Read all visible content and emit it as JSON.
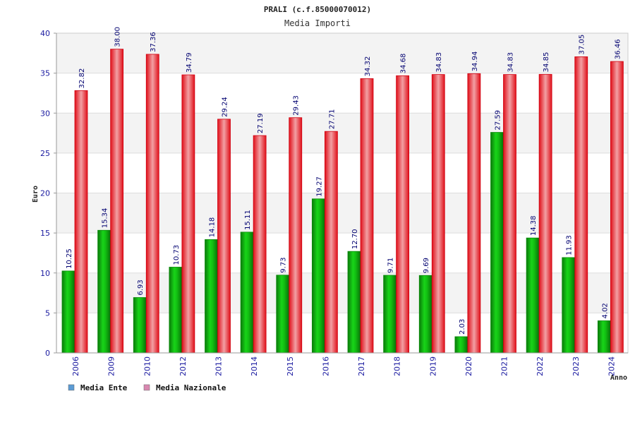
{
  "chart_data": {
    "type": "bar",
    "title": "PRALI (c.f.85000070012)",
    "subtitle": "Media Importi",
    "xlabel": "Anno",
    "ylabel": "Euro",
    "ylim": [
      0,
      40
    ],
    "yticks": [
      0,
      5,
      10,
      15,
      20,
      25,
      30,
      35,
      40
    ],
    "grid": "horizontal bands",
    "legend_position": "bottom-left",
    "categories": [
      "2006",
      "2009",
      "2010",
      "2012",
      "2013",
      "2014",
      "2015",
      "2016",
      "2017",
      "2018",
      "2019",
      "2020",
      "2021",
      "2022",
      "2023",
      "2024"
    ],
    "series": [
      {
        "name": "Media Ente",
        "color": "#12b312",
        "legend_color": "#5b9bd5",
        "values": [
          10.25,
          15.34,
          6.93,
          10.73,
          14.18,
          15.11,
          9.73,
          19.27,
          12.7,
          9.71,
          9.69,
          2.03,
          27.59,
          14.38,
          11.93,
          4.02
        ],
        "labels": [
          "10.25",
          "15.34",
          "6.93",
          "10.73",
          "14.18",
          "15.11",
          "9.73",
          "19.27",
          "12.70",
          "9.71",
          "9.69",
          "2.03",
          "27.59",
          "14.38",
          "11.93",
          "4.02"
        ]
      },
      {
        "name": "Media Nazionale",
        "color": "#e8131b",
        "legend_color": "#d988b0",
        "values": [
          32.82,
          38.0,
          37.36,
          34.79,
          29.24,
          27.19,
          29.43,
          27.71,
          34.32,
          34.68,
          34.83,
          34.94,
          34.83,
          34.85,
          37.05,
          36.46
        ],
        "labels": [
          "32.82",
          "38.00",
          "37.36",
          "34.79",
          "29.24",
          "27.19",
          "29.43",
          "27.71",
          "34.32",
          "34.68",
          "34.83",
          "34.94",
          "34.83",
          "34.85",
          "37.05",
          "36.46"
        ]
      }
    ]
  }
}
